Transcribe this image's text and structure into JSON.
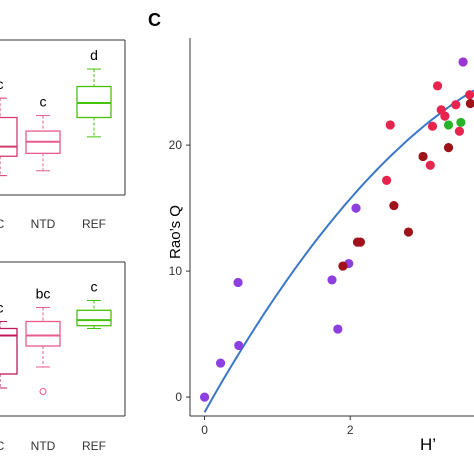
{
  "chart_data": [
    {
      "type": "box",
      "panel": "top-left (cropped)",
      "categories": [
        "C",
        "NTD",
        "REF"
      ],
      "colors": [
        "#d63c6b",
        "#e75b8f",
        "#44c20c"
      ],
      "boxes": [
        {
          "category": "C",
          "whisker_low": 20.0,
          "q1": 22.0,
          "median": 23.0,
          "q3": 26.0,
          "whisker_high": 28.0,
          "letter": "c"
        },
        {
          "category": "NTD",
          "whisker_low": 20.5,
          "q1": 22.3,
          "median": 23.5,
          "q3": 24.6,
          "whisker_high": 26.2,
          "letter": "c"
        },
        {
          "category": "REF",
          "whisker_low": 24.0,
          "q1": 26.0,
          "median": 27.5,
          "q3": 29.2,
          "whisker_high": 31.0,
          "letter": "d"
        }
      ],
      "ylim": [
        18,
        34
      ]
    },
    {
      "type": "box",
      "panel": "bottom-left (cropped)",
      "categories": [
        "C",
        "NTD",
        "REF"
      ],
      "colors": [
        "#c2185b",
        "#e75b8f",
        "#44c20c"
      ],
      "boxes": [
        {
          "category": "C",
          "whisker_low": 8.0,
          "q1": 10.0,
          "median": 15.5,
          "q3": 16.5,
          "whisker_high": 17.5,
          "letter": "c"
        },
        {
          "category": "NTD",
          "whisker_low": 11.0,
          "q1": 14.0,
          "median": 15.5,
          "q3": 17.5,
          "whisker_high": 19.5,
          "letter": "bc",
          "outliers": [
            7.5
          ]
        },
        {
          "category": "REF",
          "whisker_low": 16.5,
          "q1": 16.9,
          "median": 17.7,
          "q3": 19.1,
          "whisker_high": 20.5,
          "letter": "c"
        }
      ],
      "ylim": [
        4,
        26
      ]
    },
    {
      "type": "scatter",
      "panel_label": "C",
      "xlabel": "H’",
      "ylabel": "Rao’s Q",
      "x_ticks": [
        0,
        2
      ],
      "y_ticks": [
        0,
        10,
        20
      ],
      "xlim": [
        -0.2,
        3.7
      ],
      "ylim": [
        -1.5,
        28.5
      ],
      "series": [
        {
          "color": "#8e3fe0",
          "points": [
            [
              0.0,
              0.0
            ],
            [
              0.22,
              2.7
            ],
            [
              0.47,
              4.1
            ],
            [
              0.46,
              9.1
            ],
            [
              1.75,
              9.3
            ],
            [
              1.83,
              5.4
            ],
            [
              1.98,
              10.6
            ],
            [
              2.08,
              15.0
            ]
          ]
        },
        {
          "color": "#e8244e",
          "points": [
            [
              2.5,
              17.2
            ],
            [
              2.55,
              21.6
            ],
            [
              3.1,
              18.4
            ],
            [
              3.13,
              21.5
            ],
            [
              3.2,
              24.7
            ],
            [
              3.25,
              22.8
            ],
            [
              3.3,
              22.3
            ],
            [
              3.45,
              23.2
            ],
            [
              3.5,
              21.1
            ],
            [
              3.64,
              24.0
            ]
          ]
        },
        {
          "color": "#a0121a",
          "points": [
            [
              1.9,
              10.4
            ],
            [
              2.1,
              12.3
            ],
            [
              2.14,
              12.3
            ],
            [
              2.6,
              15.2
            ],
            [
              2.8,
              13.1
            ],
            [
              3.0,
              19.1
            ],
            [
              3.35,
              19.8
            ],
            [
              3.65,
              23.3
            ]
          ]
        },
        {
          "color": "#28b428",
          "points": [
            [
              3.35,
              21.6
            ],
            [
              3.52,
              21.8
            ]
          ]
        },
        {
          "color": "#9b35d2",
          "points": [
            [
              3.55,
              26.6
            ]
          ]
        }
      ],
      "fit_line": {
        "color": "#3a77c7",
        "intercept": -1.2,
        "slope": 10.31,
        "quadratic": -0.92,
        "x_range": [
          0.0,
          3.7
        ]
      }
    }
  ]
}
